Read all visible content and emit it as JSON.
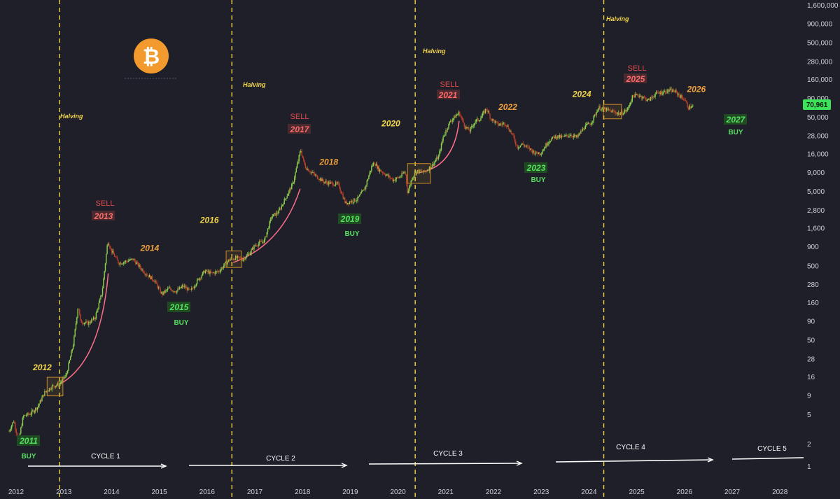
{
  "chart_data": {
    "type": "line",
    "title": "",
    "scale": "log",
    "x_ticks": [
      "2012",
      "2013",
      "2014",
      "2015",
      "2016",
      "2017",
      "2018",
      "2019",
      "2020",
      "2021",
      "2022",
      "2023",
      "2024",
      "2025",
      "2026",
      "2027",
      "2028"
    ],
    "y_ticks": [
      "1",
      "2",
      "5",
      "9",
      "16",
      "28",
      "50",
      "90",
      "160",
      "280",
      "500",
      "900",
      "1,600",
      "2,800",
      "5,000",
      "9,000",
      "16,000",
      "28,000",
      "50,000",
      "90,000",
      "160,000",
      "280,000",
      "500,000",
      "900,000",
      "1,600,000"
    ],
    "y_ticks_numeric": [
      1,
      2,
      5,
      9,
      16,
      28,
      50,
      90,
      160,
      280,
      500,
      900,
      1600,
      2800,
      5000,
      9000,
      16000,
      28000,
      50000,
      90000,
      160000,
      280000,
      500000,
      900000,
      1600000
    ],
    "current_price": "70,961",
    "series": [
      {
        "points": [
          [
            2011.85,
            3
          ],
          [
            2011.95,
            4.2
          ],
          [
            2012.05,
            2.2
          ],
          [
            2012.15,
            4.8
          ],
          [
            2012.3,
            5.2
          ],
          [
            2012.45,
            6.4
          ],
          [
            2012.6,
            10
          ],
          [
            2012.75,
            12
          ],
          [
            2012.9,
            13
          ],
          [
            2013.05,
            17
          ],
          [
            2013.2,
            45
          ],
          [
            2013.3,
            150
          ],
          [
            2013.35,
            90
          ],
          [
            2013.5,
            85
          ],
          [
            2013.65,
            100
          ],
          [
            2013.8,
            220
          ],
          [
            2013.92,
            1100
          ],
          [
            2014.0,
            800
          ],
          [
            2014.15,
            550
          ],
          [
            2014.3,
            580
          ],
          [
            2014.45,
            620
          ],
          [
            2014.6,
            480
          ],
          [
            2014.75,
            380
          ],
          [
            2014.9,
            320
          ],
          [
            2015.05,
            210
          ],
          [
            2015.2,
            250
          ],
          [
            2015.35,
            230
          ],
          [
            2015.5,
            270
          ],
          [
            2015.65,
            230
          ],
          [
            2015.8,
            320
          ],
          [
            2015.95,
            430
          ],
          [
            2016.1,
            400
          ],
          [
            2016.25,
            430
          ],
          [
            2016.45,
            600
          ],
          [
            2016.6,
            650
          ],
          [
            2016.75,
            620
          ],
          [
            2016.9,
            760
          ],
          [
            2017.0,
            950
          ],
          [
            2017.2,
            1100
          ],
          [
            2017.35,
            2300
          ],
          [
            2017.5,
            2700
          ],
          [
            2017.65,
            4200
          ],
          [
            2017.8,
            6500
          ],
          [
            2017.96,
            18500
          ],
          [
            2018.05,
            11000
          ],
          [
            2018.15,
            9500
          ],
          [
            2018.3,
            8000
          ],
          [
            2018.45,
            6800
          ],
          [
            2018.6,
            6500
          ],
          [
            2018.75,
            6300
          ],
          [
            2018.9,
            3500
          ],
          [
            2019.0,
            3700
          ],
          [
            2019.15,
            4000
          ],
          [
            2019.3,
            5500
          ],
          [
            2019.45,
            11000
          ],
          [
            2019.5,
            12500
          ],
          [
            2019.6,
            10000
          ],
          [
            2019.75,
            8500
          ],
          [
            2019.9,
            7200
          ],
          [
            2020.05,
            8000
          ],
          [
            2020.15,
            9500
          ],
          [
            2020.2,
            4800
          ],
          [
            2020.3,
            8000
          ],
          [
            2020.4,
            9500
          ],
          [
            2020.55,
            9200
          ],
          [
            2020.7,
            11000
          ],
          [
            2020.85,
            15000
          ],
          [
            2020.95,
            28000
          ],
          [
            2021.1,
            45000
          ],
          [
            2021.28,
            58000
          ],
          [
            2021.4,
            38000
          ],
          [
            2021.5,
            33000
          ],
          [
            2021.62,
            45000
          ],
          [
            2021.72,
            48000
          ],
          [
            2021.85,
            66000
          ],
          [
            2021.95,
            48000
          ],
          [
            2022.1,
            40000
          ],
          [
            2022.25,
            42000
          ],
          [
            2022.4,
            29000
          ],
          [
            2022.5,
            20000
          ],
          [
            2022.6,
            22000
          ],
          [
            2022.75,
            19000
          ],
          [
            2022.88,
            16500
          ],
          [
            2023.0,
            17000
          ],
          [
            2023.15,
            24000
          ],
          [
            2023.3,
            28000
          ],
          [
            2023.45,
            27000
          ],
          [
            2023.6,
            29500
          ],
          [
            2023.75,
            27000
          ],
          [
            2023.9,
            37000
          ],
          [
            2024.05,
            43000
          ],
          [
            2024.2,
            68000
          ],
          [
            2024.35,
            64000
          ],
          [
            2024.5,
            60000
          ],
          [
            2024.65,
            56000
          ],
          [
            2024.8,
            63000
          ],
          [
            2024.92,
            98000
          ],
          [
            2025.05,
            100000
          ],
          [
            2025.25,
            85000
          ],
          [
            2025.4,
            105000
          ],
          [
            2025.55,
            110000
          ],
          [
            2025.7,
            116000
          ],
          [
            2025.8,
            112000
          ],
          [
            2025.9,
            98000
          ],
          [
            2026.0,
            88000
          ],
          [
            2026.08,
            68000
          ],
          [
            2026.18,
            70961
          ]
        ]
      }
    ],
    "halvings": [
      {
        "label": "Halving",
        "x": 2012.91
      },
      {
        "label": "Halving",
        "x": 2016.52
      },
      {
        "label": "Halving",
        "x": 2020.36
      },
      {
        "label": "Halving",
        "x": 2024.31
      }
    ],
    "year_labels": [
      {
        "text": "2012",
        "x": 2012.55,
        "y": 20,
        "style": "yellow"
      },
      {
        "text": "2014",
        "x": 2014.8,
        "y": 800,
        "style": "orange"
      },
      {
        "text": "2016",
        "x": 2016.05,
        "y": 1900,
        "style": "yellow"
      },
      {
        "text": "2018",
        "x": 2018.55,
        "y": 11500,
        "style": "orange"
      },
      {
        "text": "2020",
        "x": 2019.85,
        "y": 38000,
        "style": "yellow"
      },
      {
        "text": "2022",
        "x": 2022.3,
        "y": 63000,
        "style": "orange"
      },
      {
        "text": "2024",
        "x": 2023.85,
        "y": 95000,
        "style": "yellow"
      },
      {
        "text": "2026",
        "x": 2026.25,
        "y": 110000,
        "style": "orange"
      }
    ],
    "sell_markers": [
      {
        "sell": "SELL",
        "year": "2013",
        "x": 2013.85
      },
      {
        "sell": "SELL",
        "year": "2017",
        "x": 2017.75
      },
      {
        "sell": "SELL",
        "year": "2021",
        "x": 2021.15
      },
      {
        "sell": "SELL",
        "year": "2025",
        "x": 2025.05
      }
    ],
    "buy_markers": [
      {
        "year": "2011",
        "buy": "BUY"
      },
      {
        "year": "2015",
        "buy": "BUY"
      },
      {
        "year": "2019",
        "buy": "BUY"
      },
      {
        "year": "2023",
        "buy": "BUY"
      },
      {
        "year": "2027",
        "buy": "BUY"
      }
    ],
    "cycles": [
      "CYCLE 1",
      "CYCLE 2",
      "CYCLE 3",
      "CYCLE 4",
      "CYCLE 5"
    ],
    "colors": {
      "background": "#1e1f29",
      "candle_up": "#8fd14f",
      "candle_down": "#c0402a",
      "halving_line": "#f2d548",
      "curve": "#ff6f8a",
      "box": "#c98a28",
      "price_tag": "#3be25a"
    },
    "logo": "bitcoin-logo"
  }
}
